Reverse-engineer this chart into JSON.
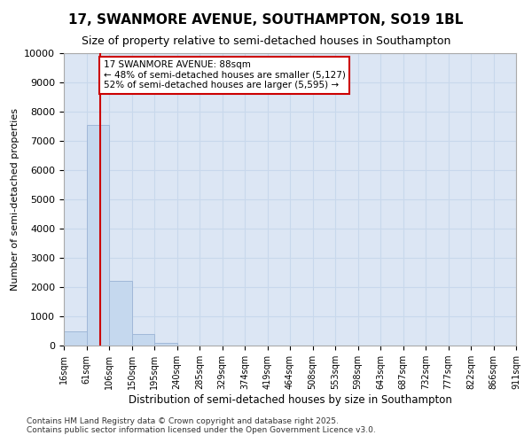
{
  "title": "17, SWANMORE AVENUE, SOUTHAMPTON, SO19 1BL",
  "subtitle": "Size of property relative to semi-detached houses in Southampton",
  "xlabel": "Distribution of semi-detached houses by size in Southampton",
  "ylabel": "Number of semi-detached properties",
  "footnote1": "Contains HM Land Registry data © Crown copyright and database right 2025.",
  "footnote2": "Contains public sector information licensed under the Open Government Licence v3.0.",
  "property_label": "17 SWANMORE AVENUE: 88sqm",
  "smaller_pct": 48,
  "smaller_count": 5127,
  "larger_pct": 52,
  "larger_count": 5595,
  "bin_labels": [
    "16sqm",
    "61sqm",
    "106sqm",
    "150sqm",
    "195sqm",
    "240sqm",
    "285sqm",
    "329sqm",
    "374sqm",
    "419sqm",
    "464sqm",
    "508sqm",
    "553sqm",
    "598sqm",
    "643sqm",
    "687sqm",
    "732sqm",
    "777sqm",
    "822sqm",
    "866sqm",
    "911sqm"
  ],
  "bar_heights": [
    500,
    7550,
    2200,
    380,
    80,
    10,
    0,
    0,
    0,
    0,
    0,
    0,
    0,
    0,
    0,
    0,
    0,
    0,
    0,
    0
  ],
  "bar_color": "#c5d8ee",
  "bar_edge_color": "#a0b8d8",
  "grid_color": "#c8d8ec",
  "background_color": "#dce6f4",
  "vline_color": "#cc0000",
  "vline_x": 1.6,
  "annotation_box_color": "#ffffff",
  "annotation_box_edge": "#cc0000",
  "ylim": [
    0,
    10000
  ],
  "yticks": [
    0,
    1000,
    2000,
    3000,
    4000,
    5000,
    6000,
    7000,
    8000,
    9000,
    10000
  ],
  "n_bins": 20,
  "figsize": [
    6.0,
    5.0
  ],
  "dpi": 100
}
